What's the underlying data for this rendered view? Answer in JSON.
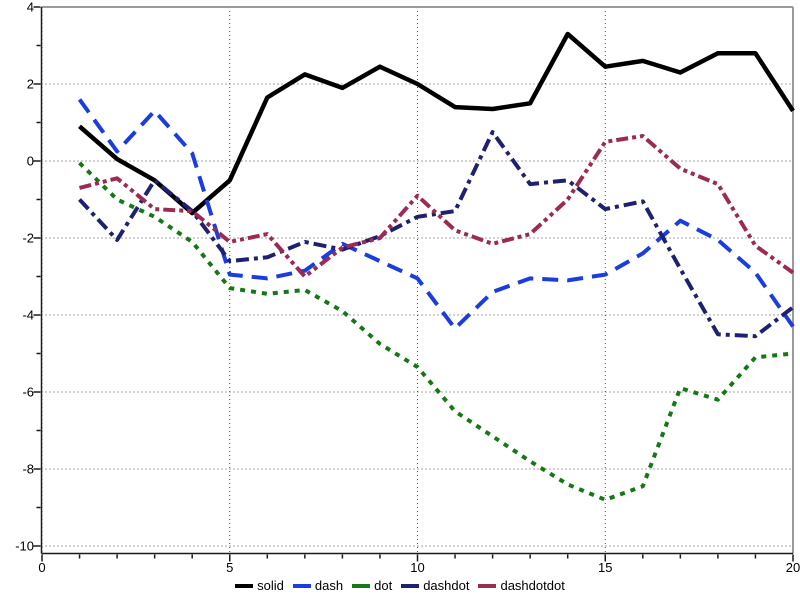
{
  "chart_data": {
    "type": "line",
    "title": "",
    "xlabel": "",
    "ylabel": "",
    "xlim": [
      0,
      20
    ],
    "ylim": [
      -10,
      4
    ],
    "x_ticks": [
      0,
      5,
      10,
      15,
      20
    ],
    "y_ticks": [
      4,
      2,
      0,
      -2,
      -4,
      -6,
      -8,
      -10
    ],
    "minor_x_tick_step": 1,
    "minor_y_tick_step": 1,
    "grid": true,
    "grid_style": "dotted",
    "legend_position": "bottom-center",
    "x": [
      1,
      2,
      3,
      4,
      5,
      6,
      7,
      8,
      9,
      10,
      11,
      12,
      13,
      14,
      15,
      16,
      17,
      18,
      19,
      20
    ],
    "series": [
      {
        "name": "solid",
        "style": "solid",
        "color": "#000000",
        "values": [
          0.9,
          0.05,
          -0.5,
          -1.35,
          -0.5,
          1.65,
          2.25,
          1.9,
          2.45,
          2.0,
          1.4,
          1.35,
          1.5,
          3.3,
          2.45,
          2.6,
          2.3,
          2.8,
          2.8,
          1.3
        ]
      },
      {
        "name": "dash",
        "style": "dash",
        "color": "#1a3de0",
        "values": [
          1.6,
          0.25,
          1.3,
          0.2,
          -2.95,
          -3.05,
          -2.85,
          -2.15,
          -2.6,
          -3.05,
          -4.35,
          -3.4,
          -3.05,
          -3.1,
          -2.95,
          -2.4,
          -1.55,
          -2.05,
          -2.9,
          -4.3
        ]
      },
      {
        "name": "dot",
        "style": "dot",
        "color": "#157815",
        "values": [
          -0.05,
          -1.0,
          -1.45,
          -2.1,
          -3.3,
          -3.45,
          -3.35,
          -3.9,
          -4.75,
          -5.35,
          -6.5,
          -7.15,
          -7.8,
          -8.4,
          -8.8,
          -8.45,
          -5.9,
          -6.2,
          -5.1,
          -5.0
        ]
      },
      {
        "name": "dashdot",
        "style": "dashdot",
        "color": "#1e2170",
        "values": [
          -1.0,
          -2.05,
          -0.5,
          -1.3,
          -2.6,
          -2.5,
          -2.1,
          -2.3,
          -1.95,
          -1.45,
          -1.3,
          0.75,
          -0.6,
          -0.5,
          -1.25,
          -1.05,
          -2.8,
          -4.5,
          -4.55,
          -3.8
        ]
      },
      {
        "name": "dashdotdot",
        "style": "dashdotdot",
        "color": "#9b2b52",
        "values": [
          -0.7,
          -0.45,
          -1.25,
          -1.3,
          -2.1,
          -1.9,
          -3.0,
          -2.25,
          -2.0,
          -0.9,
          -1.8,
          -2.15,
          -1.9,
          -1.0,
          0.5,
          0.65,
          -0.2,
          -0.6,
          -2.2,
          -2.9
        ]
      }
    ],
    "colors": {
      "background": "#ffffff",
      "frame_top_right": "#9a9a9a",
      "axis": "#1a1a1a",
      "grid": "#4d4d4d",
      "tick_text": "#000000"
    }
  }
}
